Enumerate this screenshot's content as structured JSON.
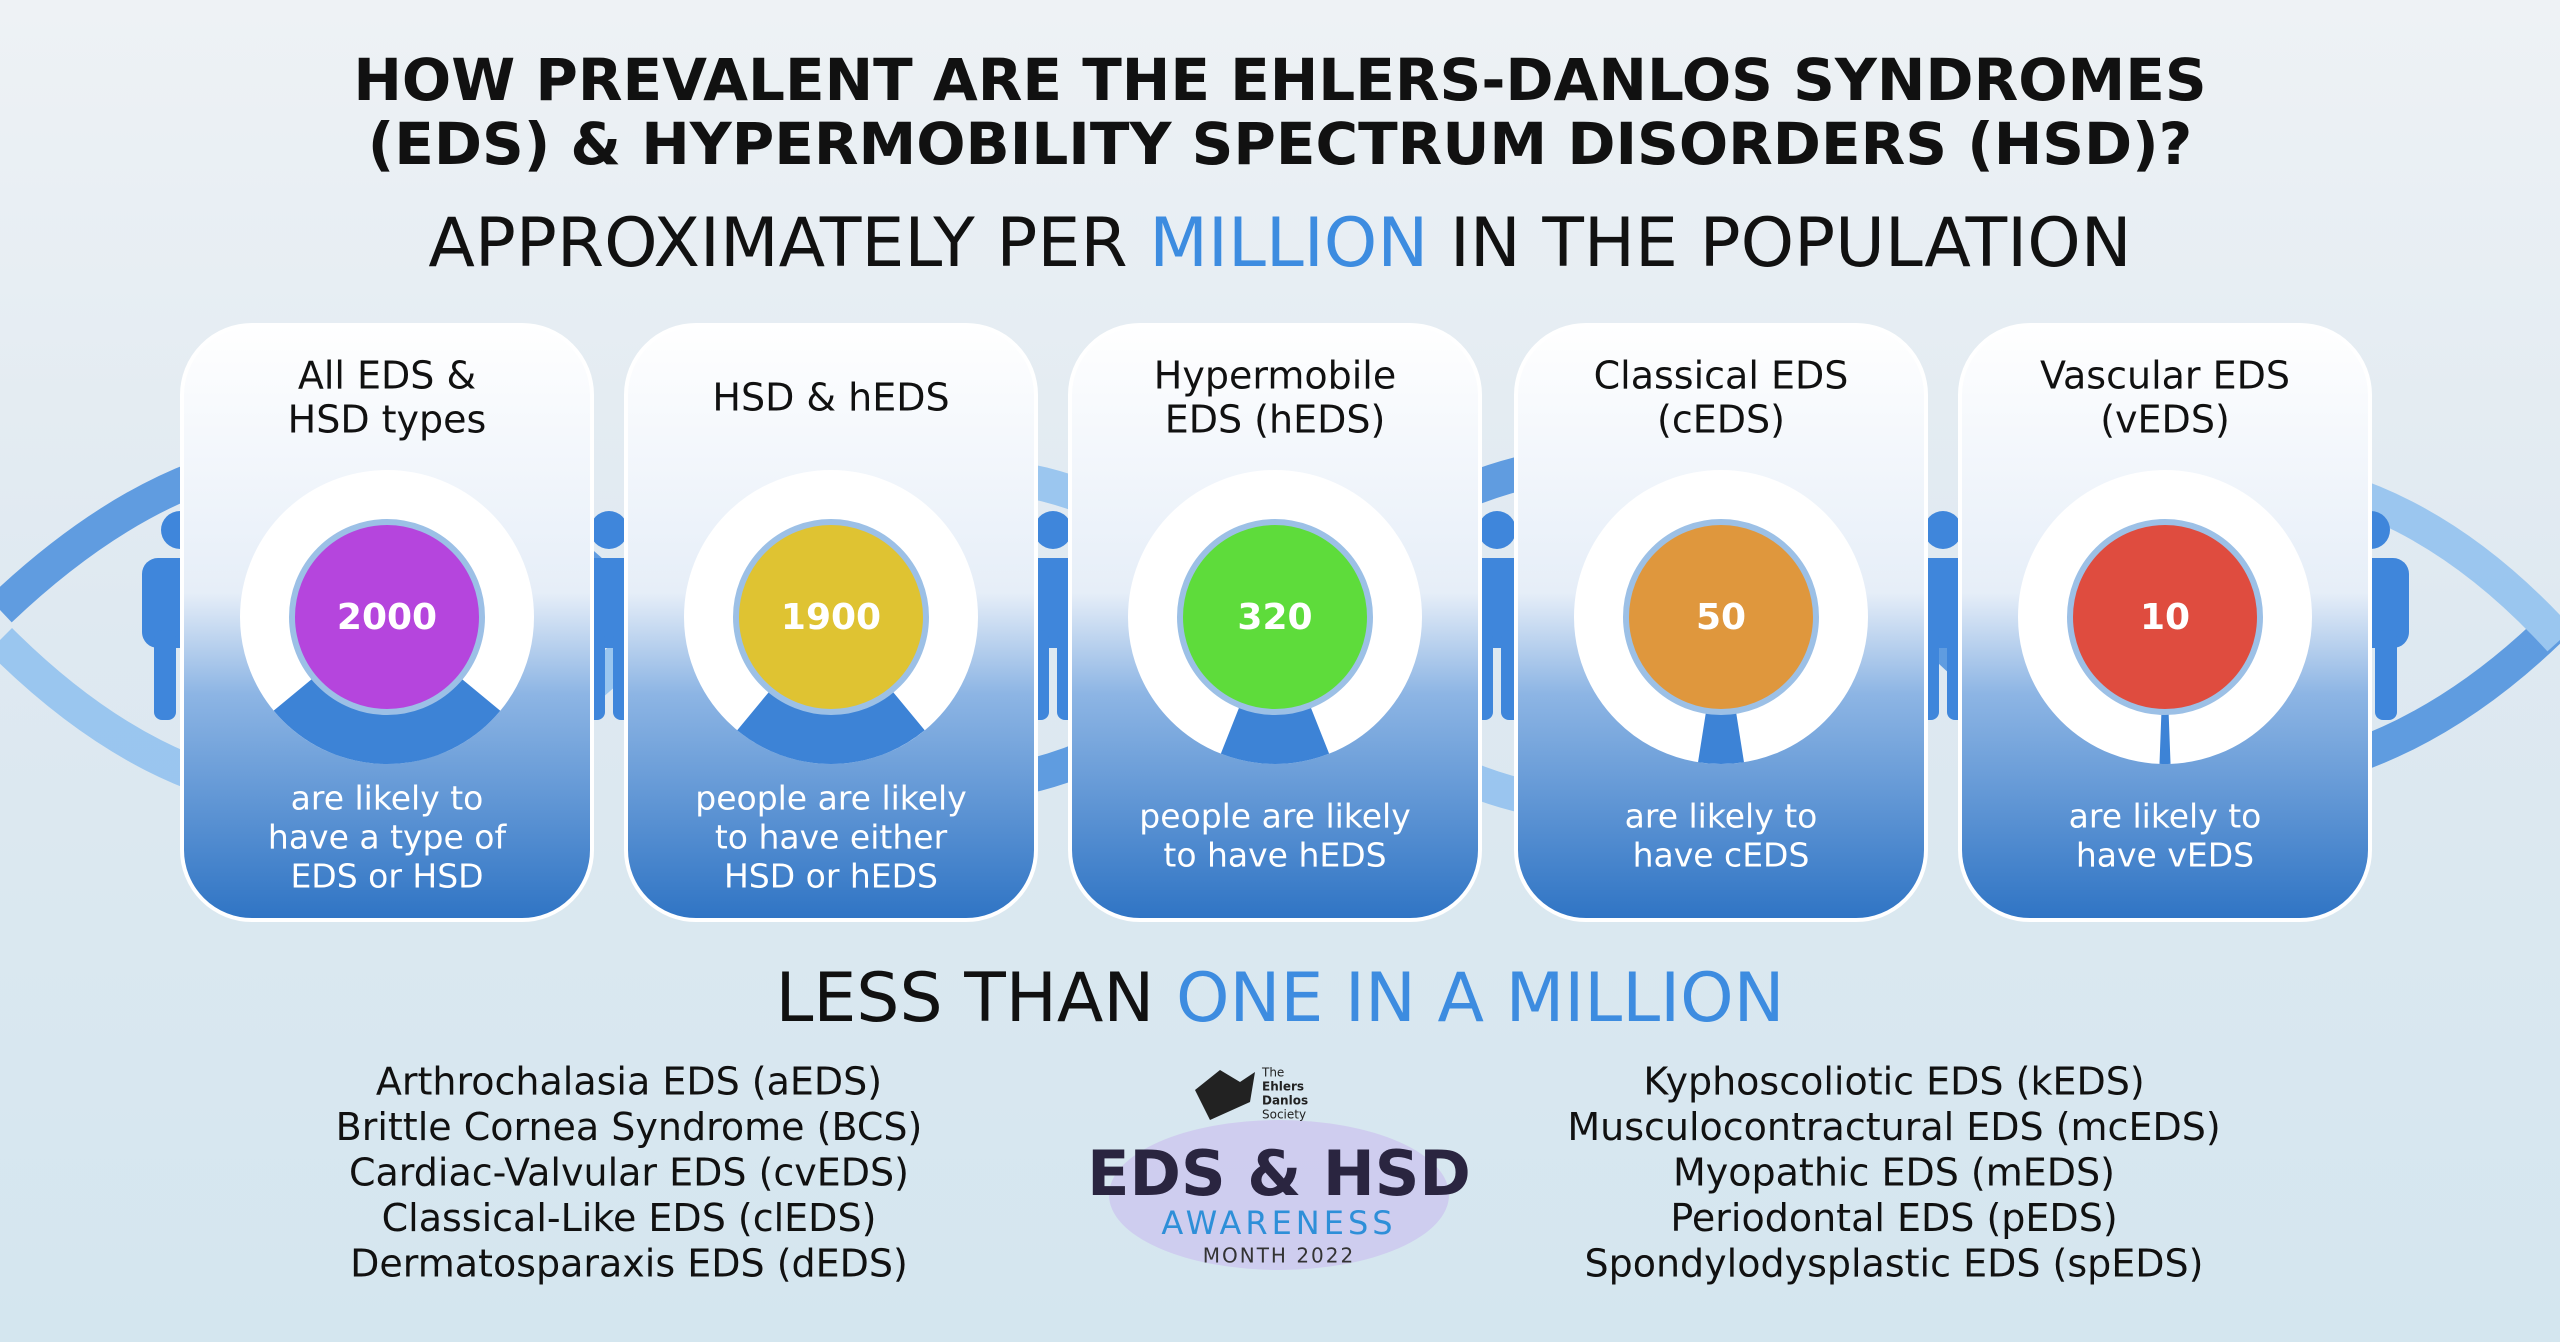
{
  "header": {
    "title_lines": [
      "HOW PREVALENT ARE THE EHLERS-DANLOS SYNDROMES",
      "(EDS) & HYPERMOBILITY SPECTRUM DISORDERS (HSD)?"
    ],
    "subtitle_parts": [
      "APPROXIMATELY PER",
      "MILLION",
      "IN THE POPULATION"
    ]
  },
  "cards": [
    {
      "title_lines": [
        "All EDS &",
        "HSD types"
      ],
      "value": "2000",
      "color": "#b545dd",
      "description_lines": [
        "are likely to",
        "have a type of",
        "EDS or HSD"
      ]
    },
    {
      "title_lines": [
        "HSD & hEDS"
      ],
      "value": "1900",
      "color": "#dfc332",
      "description_lines": [
        "people are likely",
        "to have either",
        "HSD or hEDS"
      ]
    },
    {
      "title_lines": [
        "Hypermobile",
        "EDS (hEDS)"
      ],
      "value": "320",
      "color": "#5edc3b",
      "description_lines": [
        "people are likely",
        "to have hEDS"
      ]
    },
    {
      "title_lines": [
        "Classical EDS",
        "(cEDS)"
      ],
      "value": "50",
      "color": "#df973d",
      "description_lines": [
        "are likely to",
        "have cEDS"
      ]
    },
    {
      "title_lines": [
        "Vascular EDS",
        "(vEDS)"
      ],
      "value": "10",
      "color": "#df4c3f",
      "description_lines": [
        "are likely to",
        "have vEDS"
      ]
    }
  ],
  "rare": {
    "heading_parts": [
      "LESS THAN",
      "ONE IN A MILLION"
    ],
    "left": [
      "Arthrochalasia EDS (aEDS)",
      "Brittle Cornea Syndrome (BCS)",
      "Cardiac-Valvular EDS (cvEDS)",
      "Classical-Like EDS (clEDS)",
      "Dermatosparaxis EDS (dEDS)"
    ],
    "right": [
      "Kyphoscoliotic EDS (kEDS)",
      "Musculocontractural EDS (mcEDS)",
      "Myopathic EDS (mEDS)",
      "Periodontal EDS (pEDS)",
      "Spondylodysplastic EDS (spEDS)"
    ]
  },
  "logo": {
    "society_lines": [
      "The",
      "Ehlers",
      "Danlos",
      "Society"
    ],
    "main": "EDS & HSD",
    "awareness": "AWARENESS",
    "month": "MONTH 2022"
  }
}
